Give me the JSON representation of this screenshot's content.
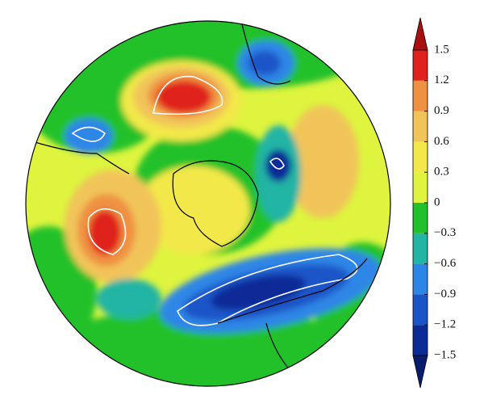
{
  "chart_data": {
    "type": "polar-contour-map",
    "colorbar": {
      "clim": [
        -1.5,
        1.5
      ],
      "ticks": [
        {
          "value": -1.5,
          "label": "−1.5"
        },
        {
          "value": -1.2,
          "label": "−1.2"
        },
        {
          "value": -0.9,
          "label": "−0.9"
        },
        {
          "value": -0.6,
          "label": "−0.6"
        },
        {
          "value": -0.3,
          "label": "−0.3"
        },
        0,
        0.3,
        0.6,
        0.9,
        1.2,
        1.5
      ],
      "colors": [
        "#081d6e",
        "#0b2c97",
        "#1a55c8",
        "#2d86e6",
        "#22b4a4",
        "#22c12c",
        "#def43e",
        "#f2e84a",
        "#f1c45a",
        "#ef9142",
        "#e0221e",
        "#a80f10"
      ]
    }
  }
}
